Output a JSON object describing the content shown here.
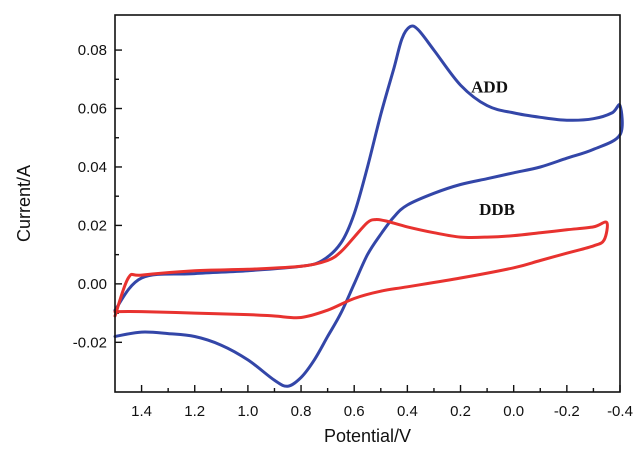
{
  "chart_data": {
    "type": "line",
    "title": "",
    "xlabel": "Potential/V",
    "ylabel": "Current/A",
    "xlim": [
      1.5,
      -0.4
    ],
    "ylim": [
      -0.037,
      0.092
    ],
    "x_reversed": true,
    "grid": false,
    "x_ticks": [
      1.4,
      1.2,
      1.0,
      0.8,
      0.6,
      0.4,
      0.2,
      0.0,
      -0.2,
      -0.4
    ],
    "x_tick_labels": [
      "1.4",
      "1.2",
      "1.0",
      "0.8",
      "0.6",
      "0.4",
      "0.2",
      "0.0",
      "-0.2",
      "-0.4"
    ],
    "y_ticks": [
      -0.02,
      0.0,
      0.02,
      0.04,
      0.06,
      0.08
    ],
    "y_tick_labels": [
      "-0.02",
      "0.00",
      "0.02",
      "0.04",
      "0.06",
      "0.08"
    ],
    "series": [
      {
        "name": "ADD",
        "color": "#3346a8",
        "label_at": [
          0.16,
          0.0655
        ],
        "points": [
          [
            1.5,
            -0.009
          ],
          [
            1.4,
            0.002
          ],
          [
            1.2,
            0.0035
          ],
          [
            1.0,
            0.0045
          ],
          [
            0.8,
            0.006
          ],
          [
            0.72,
            0.008
          ],
          [
            0.65,
            0.014
          ],
          [
            0.6,
            0.024
          ],
          [
            0.55,
            0.04
          ],
          [
            0.5,
            0.058
          ],
          [
            0.45,
            0.074
          ],
          [
            0.42,
            0.084
          ],
          [
            0.39,
            0.088
          ],
          [
            0.36,
            0.087
          ],
          [
            0.3,
            0.08
          ],
          [
            0.2,
            0.068
          ],
          [
            0.1,
            0.061
          ],
          [
            0.0,
            0.0585
          ],
          [
            -0.1,
            0.057
          ],
          [
            -0.2,
            0.056
          ],
          [
            -0.3,
            0.0565
          ],
          [
            -0.37,
            0.0585
          ],
          [
            -0.4,
            0.061
          ],
          [
            -0.4,
            0.051
          ],
          [
            -0.3,
            0.046
          ],
          [
            -0.2,
            0.043
          ],
          [
            -0.1,
            0.04
          ],
          [
            0.0,
            0.038
          ],
          [
            0.1,
            0.036
          ],
          [
            0.2,
            0.034
          ],
          [
            0.3,
            0.031
          ],
          [
            0.4,
            0.027
          ],
          [
            0.45,
            0.023
          ],
          [
            0.5,
            0.017
          ],
          [
            0.55,
            0.01
          ],
          [
            0.6,
            0.0
          ],
          [
            0.65,
            -0.01
          ],
          [
            0.7,
            -0.018
          ],
          [
            0.75,
            -0.026
          ],
          [
            0.8,
            -0.032
          ],
          [
            0.85,
            -0.035
          ],
          [
            0.9,
            -0.033
          ],
          [
            1.0,
            -0.026
          ],
          [
            1.1,
            -0.021
          ],
          [
            1.2,
            -0.018
          ],
          [
            1.3,
            -0.017
          ],
          [
            1.4,
            -0.0165
          ],
          [
            1.5,
            -0.018
          ]
        ]
      },
      {
        "name": "DDB",
        "color": "#e8322f",
        "label_at": [
          0.13,
          0.0235
        ],
        "points": [
          [
            1.5,
            -0.011
          ],
          [
            1.45,
            0.002
          ],
          [
            1.4,
            0.003
          ],
          [
            1.2,
            0.0045
          ],
          [
            1.0,
            0.005
          ],
          [
            0.8,
            0.006
          ],
          [
            0.7,
            0.008
          ],
          [
            0.65,
            0.011
          ],
          [
            0.6,
            0.016
          ],
          [
            0.55,
            0.021
          ],
          [
            0.52,
            0.022
          ],
          [
            0.48,
            0.0215
          ],
          [
            0.4,
            0.0195
          ],
          [
            0.3,
            0.0175
          ],
          [
            0.2,
            0.016
          ],
          [
            0.1,
            0.016
          ],
          [
            0.0,
            0.0165
          ],
          [
            -0.1,
            0.0175
          ],
          [
            -0.2,
            0.0185
          ],
          [
            -0.3,
            0.0195
          ],
          [
            -0.35,
            0.021
          ],
          [
            -0.34,
            0.015
          ],
          [
            -0.3,
            0.013
          ],
          [
            -0.2,
            0.0105
          ],
          [
            -0.1,
            0.008
          ],
          [
            0.0,
            0.0055
          ],
          [
            0.2,
            0.002
          ],
          [
            0.4,
            -0.001
          ],
          [
            0.5,
            -0.0025
          ],
          [
            0.6,
            -0.005
          ],
          [
            0.7,
            -0.009
          ],
          [
            0.8,
            -0.0115
          ],
          [
            0.9,
            -0.011
          ],
          [
            1.0,
            -0.0105
          ],
          [
            1.2,
            -0.01
          ],
          [
            1.4,
            -0.0095
          ],
          [
            1.5,
            -0.0095
          ]
        ]
      }
    ]
  }
}
